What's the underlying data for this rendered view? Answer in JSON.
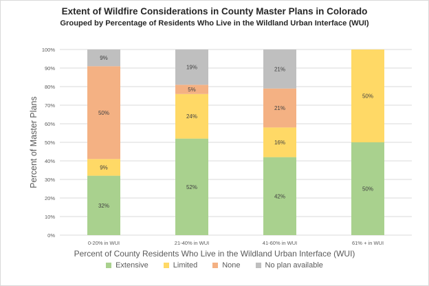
{
  "chart_data": {
    "type": "bar",
    "stacked": true,
    "normalized": true,
    "title": "Extent of Wildfire Considerations in County Master Plans in Colorado",
    "subtitle": "Grouped by Percentage of Residents Who Live in the Wildland Urban Interface (WUI)",
    "xlabel": "Percent of County Residents Who Live in the Wildland Urban Interface (WUI)",
    "ylabel": "Percent of  Master Plans",
    "ylim": [
      0,
      100
    ],
    "yticks": [
      "0%",
      "10%",
      "20%",
      "30%",
      "40%",
      "50%",
      "60%",
      "70%",
      "80%",
      "90%",
      "100%"
    ],
    "grid": true,
    "legend_position": "bottom",
    "categories": [
      "0-20% in WUI",
      "21-40% in WUI",
      "41-60% in WUI",
      "61% + in WUI"
    ],
    "series": [
      {
        "name": "Extensive",
        "color": "#a9d18e",
        "values": [
          32,
          52,
          42,
          50
        ],
        "labels": [
          "32%",
          "52%",
          "42%",
          "50%"
        ]
      },
      {
        "name": "Limited",
        "color": "#ffd966",
        "values": [
          9,
          24,
          16,
          50
        ],
        "labels": [
          "9%",
          "24%",
          "16%",
          "50%"
        ]
      },
      {
        "name": "None",
        "color": "#f4b183",
        "values": [
          50,
          5,
          21,
          0
        ],
        "labels": [
          "50%",
          "5%",
          "21%",
          ""
        ]
      },
      {
        "name": "No plan available",
        "color": "#bfbfbf",
        "values": [
          9,
          19,
          21,
          0
        ],
        "labels": [
          "9%",
          "19%",
          "21%",
          ""
        ]
      }
    ]
  }
}
